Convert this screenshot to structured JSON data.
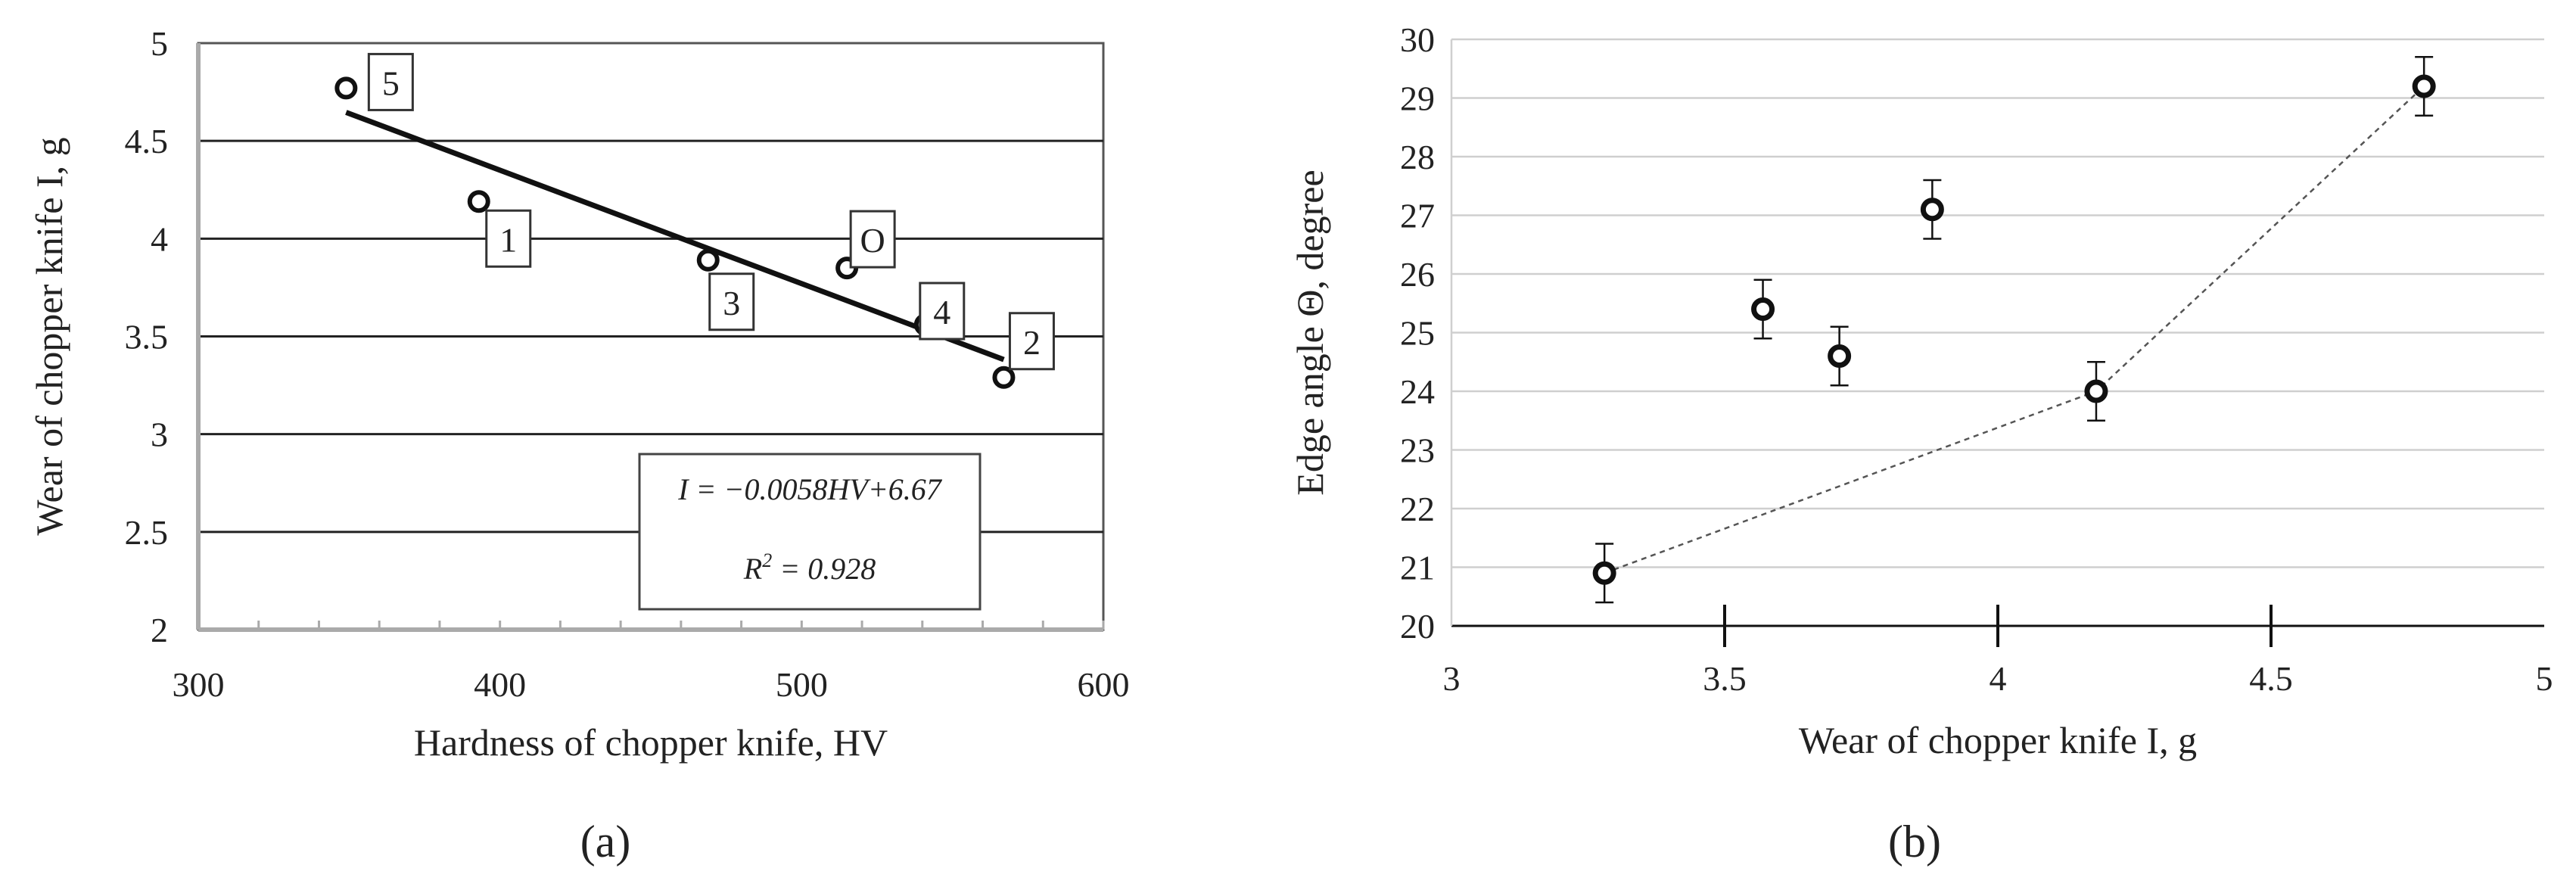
{
  "chart_data": [
    {
      "type": "scatter",
      "panel_label": "(a)",
      "xlabel": "Hardness of chopper knife, HV",
      "ylabel": "Wear of chopper knife I, g",
      "xlim": [
        300,
        600
      ],
      "ylim": [
        2,
        5
      ],
      "xticks": [
        "300",
        "400",
        "500",
        "600"
      ],
      "yticks": [
        "2",
        "2.5",
        "3",
        "3.5",
        "4",
        "4.5",
        "5"
      ],
      "grid": "horizontal",
      "points": [
        {
          "label": "5",
          "x": 349,
          "y": 4.77
        },
        {
          "label": "1",
          "x": 393,
          "y": 4.19
        },
        {
          "label": "3",
          "x": 469,
          "y": 3.89
        },
        {
          "label": "O",
          "x": 515,
          "y": 3.85
        },
        {
          "label": "4",
          "x": 541,
          "y": 3.56
        },
        {
          "label": "2",
          "x": 567,
          "y": 3.29
        }
      ],
      "trendline": {
        "slope": -0.0058,
        "intercept": 6.67,
        "x_range": [
          349,
          567
        ]
      },
      "annotation": {
        "equation": "I = −0.0058HV+6.67",
        "r2_prefix": "R",
        "r2_sup": "2",
        "r2_value": " = 0.928"
      }
    },
    {
      "type": "scatter",
      "panel_label": "(b)",
      "xlabel": "Wear of chopper knife I, g",
      "ylabel": "Edge angle Θ, degree",
      "xlim": [
        3,
        5
      ],
      "ylim": [
        20,
        30
      ],
      "xticks": [
        "3",
        "3.5",
        "4",
        "4.5",
        "5"
      ],
      "yticks": [
        "20",
        "21",
        "22",
        "23",
        "24",
        "25",
        "26",
        "27",
        "28",
        "29",
        "30"
      ],
      "grid": "horizontal",
      "error_bar": 0.5,
      "points": [
        {
          "x": 3.28,
          "y": 20.9
        },
        {
          "x": 3.57,
          "y": 25.4
        },
        {
          "x": 3.71,
          "y": 24.6
        },
        {
          "x": 3.88,
          "y": 27.1
        },
        {
          "x": 4.18,
          "y": 24.0
        },
        {
          "x": 4.78,
          "y": 29.2
        }
      ],
      "dashed_line_points": [
        [
          3.28,
          20.9
        ],
        [
          4.18,
          24.0
        ],
        [
          4.78,
          29.2
        ]
      ]
    }
  ]
}
